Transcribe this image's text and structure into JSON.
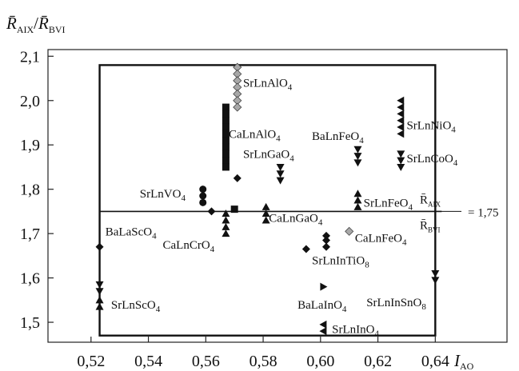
{
  "chart_data": {
    "type": "scatter",
    "title": "",
    "xlabel": "I_AO",
    "ylabel": "R̄A_IX / R̄B_VI",
    "xlim": [
      0.505,
      0.665
    ],
    "ylim": [
      1.455,
      2.115
    ],
    "xticks": [
      "0,52",
      "0,54",
      "0,56",
      "0,58",
      "0,60",
      "0,62",
      "0,64"
    ],
    "yticks": [
      "1,5",
      "1,6",
      "1,7",
      "1,8",
      "1,9",
      "2,0",
      "2,1"
    ],
    "grid": false,
    "axis_label": {
      "x_main": "I",
      "x_sub": "AO",
      "y_num_main": "R̄",
      "y_num_sub": "AIX",
      "y_slash": "/",
      "y_den_main": "R̄",
      "y_den_sub": "BVI"
    },
    "boundary_box": {
      "x": [
        0.523,
        0.64
      ],
      "y": [
        1.47,
        2.08
      ]
    },
    "threshold": {
      "y": 1.75,
      "x_range": [
        0.523,
        0.64
      ],
      "num_main": "R̄",
      "num_sub": "AIX",
      "den_main": "R̄",
      "den_sub": "BVI",
      "value_text": "= 1,75"
    },
    "series": [
      {
        "marker": "diamond-black",
        "points": [
          [
            0.523,
            1.67
          ],
          [
            0.562,
            1.75
          ],
          [
            0.571,
            1.825
          ],
          [
            0.595,
            1.665
          ],
          [
            0.602,
            1.67
          ],
          [
            0.602,
            1.685
          ],
          [
            0.602,
            1.695
          ]
        ]
      },
      {
        "marker": "diamond-gray",
        "points": [
          [
            0.571,
            2.075
          ],
          [
            0.571,
            2.06
          ],
          [
            0.571,
            2.045
          ],
          [
            0.571,
            2.03
          ],
          [
            0.571,
            2.015
          ],
          [
            0.571,
            2.0
          ],
          [
            0.571,
            1.985
          ],
          [
            0.61,
            1.705
          ]
        ]
      },
      {
        "marker": "circle",
        "points": [
          [
            0.559,
            1.8
          ],
          [
            0.559,
            1.785
          ],
          [
            0.559,
            1.77
          ]
        ]
      },
      {
        "marker": "square",
        "points": [
          [
            0.567,
            1.985
          ],
          [
            0.567,
            1.97
          ],
          [
            0.567,
            1.955
          ],
          [
            0.567,
            1.94
          ],
          [
            0.567,
            1.925
          ],
          [
            0.567,
            1.91
          ],
          [
            0.567,
            1.895
          ],
          [
            0.567,
            1.88
          ],
          [
            0.567,
            1.865
          ],
          [
            0.567,
            1.85
          ],
          [
            0.57,
            1.755
          ]
        ]
      },
      {
        "marker": "triangle-up",
        "points": [
          [
            0.523,
            1.55
          ],
          [
            0.523,
            1.535
          ],
          [
            0.567,
            1.745
          ],
          [
            0.567,
            1.73
          ],
          [
            0.567,
            1.715
          ],
          [
            0.567,
            1.7
          ],
          [
            0.581,
            1.76
          ],
          [
            0.581,
            1.745
          ],
          [
            0.581,
            1.73
          ],
          [
            0.613,
            1.79
          ],
          [
            0.613,
            1.775
          ],
          [
            0.613,
            1.76
          ]
        ]
      },
      {
        "marker": "triangle-down",
        "points": [
          [
            0.523,
            1.585
          ],
          [
            0.523,
            1.57
          ],
          [
            0.586,
            1.85
          ],
          [
            0.586,
            1.835
          ],
          [
            0.586,
            1.82
          ],
          [
            0.613,
            1.89
          ],
          [
            0.613,
            1.875
          ],
          [
            0.613,
            1.86
          ],
          [
            0.628,
            1.88
          ],
          [
            0.628,
            1.865
          ],
          [
            0.628,
            1.85
          ],
          [
            0.64,
            1.61
          ],
          [
            0.64,
            1.595
          ]
        ]
      },
      {
        "marker": "triangle-left",
        "points": [
          [
            0.628,
            2.0
          ],
          [
            0.628,
            1.985
          ],
          [
            0.628,
            1.97
          ],
          [
            0.628,
            1.955
          ],
          [
            0.628,
            1.94
          ],
          [
            0.628,
            1.925
          ],
          [
            0.601,
            1.495
          ],
          [
            0.601,
            1.48
          ]
        ]
      },
      {
        "marker": "triangle-right",
        "points": [
          [
            0.601,
            1.58
          ]
        ]
      }
    ],
    "annotations": [
      {
        "main": "SrLnAlO",
        "sub": "4",
        "x": 0.573,
        "y": 2.04
      },
      {
        "main": "CaLnAlO",
        "sub": "4",
        "x": 0.568,
        "y": 1.925
      },
      {
        "main": "SrLnGaO",
        "sub": "4",
        "x": 0.573,
        "y": 1.88
      },
      {
        "main": "BaLnFeO",
        "sub": "4",
        "x": 0.597,
        "y": 1.92
      },
      {
        "main": "SrLnNiO",
        "sub": "4",
        "x": 0.63,
        "y": 1.945
      },
      {
        "main": "SrLnCoO",
        "sub": "4",
        "x": 0.63,
        "y": 1.87
      },
      {
        "main": "SrLnVO",
        "sub": "4",
        "x": 0.537,
        "y": 1.79
      },
      {
        "main": "SrLnFeO",
        "sub": "4",
        "x": 0.615,
        "y": 1.77
      },
      {
        "main": "CaLnGaO",
        "sub": "4",
        "x": 0.582,
        "y": 1.735
      },
      {
        "main": "BaLaScO",
        "sub": "4",
        "x": 0.525,
        "y": 1.705
      },
      {
        "main": "CaLnCrO",
        "sub": "4",
        "x": 0.545,
        "y": 1.675
      },
      {
        "main": "CaLnFeO",
        "sub": "4",
        "x": 0.612,
        "y": 1.69
      },
      {
        "main": "SrLnInTiO",
        "sub": "8",
        "x": 0.597,
        "y": 1.64
      },
      {
        "main": "SrLnScO",
        "sub": "4",
        "x": 0.527,
        "y": 1.54
      },
      {
        "main": "BaLaInO",
        "sub": "4",
        "x": 0.592,
        "y": 1.54
      },
      {
        "main": "SrLnInSnO",
        "sub": "8",
        "x": 0.616,
        "y": 1.545
      },
      {
        "main": "SrLnInO",
        "sub": "4",
        "x": 0.604,
        "y": 1.485
      }
    ]
  }
}
